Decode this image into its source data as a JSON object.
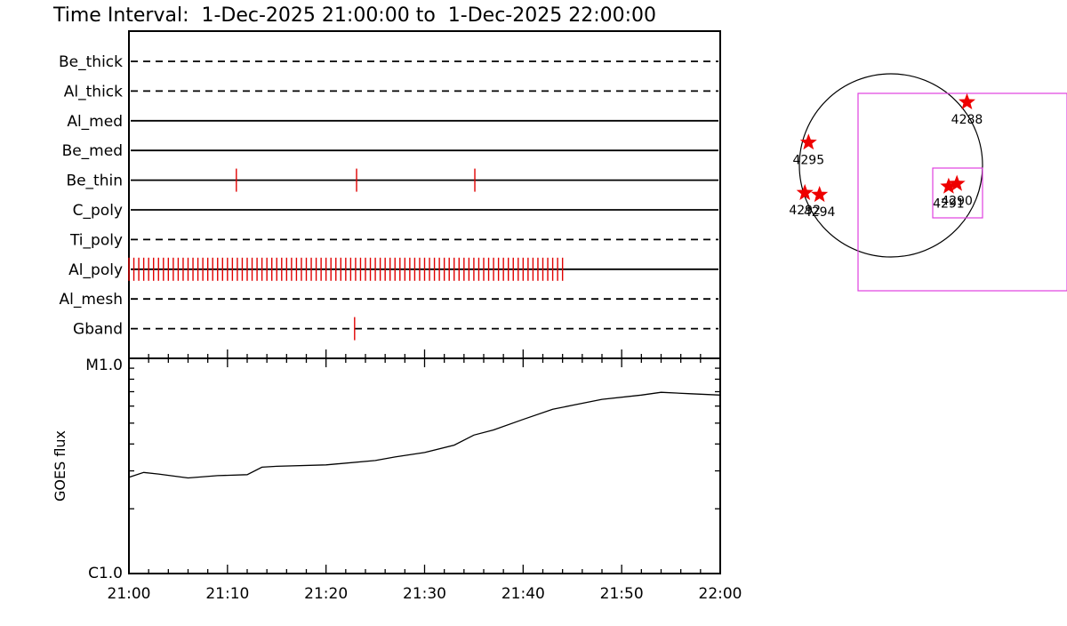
{
  "title": "Time Interval:  1-Dec-2025 21:00:00 to  1-Dec-2025 22:00:00",
  "chart_data": [
    {
      "type": "timeline",
      "name": "filter-timeline",
      "x_ticks": [
        "21:00",
        "21:10",
        "21:20",
        "21:30",
        "21:40",
        "21:50",
        "22:00"
      ],
      "xlim_minutes": [
        0,
        60
      ],
      "channels": [
        {
          "label": "Be_thick",
          "style": "dashed",
          "events": []
        },
        {
          "label": "Al_thick",
          "style": "dashed",
          "events": []
        },
        {
          "label": "Al_med",
          "style": "solid",
          "events": []
        },
        {
          "label": "Be_med",
          "style": "solid",
          "events": []
        },
        {
          "label": "Be_thin",
          "style": "solid",
          "events": [
            10.9,
            23.1,
            35.1
          ]
        },
        {
          "label": "C_poly",
          "style": "solid",
          "events": []
        },
        {
          "label": "Ti_poly",
          "style": "dashed",
          "events": []
        },
        {
          "label": "Al_poly",
          "style": "solid",
          "events": "periodic",
          "period_minutes": 0.5,
          "event_range": [
            0,
            44.4
          ]
        },
        {
          "label": "Al_mesh",
          "style": "dashed",
          "events": []
        },
        {
          "label": "Gband",
          "style": "dashed",
          "events": [
            22.9
          ]
        }
      ],
      "event_color": "#e00000"
    },
    {
      "type": "line",
      "name": "goes-flux",
      "ylabel": "GOES flux",
      "y_scale": "log",
      "y_tick_labels": [
        "M1.0",
        "C1.0"
      ],
      "ylim_wm2": [
        1e-06,
        1e-05
      ],
      "x_ticks": [
        "21:00",
        "21:10",
        "21:20",
        "21:30",
        "21:40",
        "21:50",
        "22:00"
      ],
      "series": [
        {
          "x_minutes": [
            0,
            1.5,
            3,
            6,
            9,
            12,
            13.5,
            15,
            20,
            25,
            27,
            30,
            33,
            35,
            37,
            40,
            43,
            45,
            48,
            52,
            54,
            57,
            60
          ],
          "flux_wm2": [
            2.8e-06,
            2.95e-06,
            2.9e-06,
            2.78e-06,
            2.85e-06,
            2.88e-06,
            3.12e-06,
            3.15e-06,
            3.2e-06,
            3.35e-06,
            3.48e-06,
            3.65e-06,
            3.95e-06,
            4.4e-06,
            4.65e-06,
            5.2e-06,
            5.8e-06,
            6.05e-06,
            6.45e-06,
            6.75e-06,
            6.95e-06,
            6.85e-06,
            6.75e-06
          ]
        }
      ]
    },
    {
      "type": "scatter",
      "name": "solar-disk-map",
      "active_regions": [
        {
          "label": "4288",
          "x": 0.83,
          "y": 0.69
        },
        {
          "label": "4295",
          "x": -0.9,
          "y": 0.25
        },
        {
          "label": "4292",
          "x": -0.94,
          "y": -0.3
        },
        {
          "label": "4294",
          "x": -0.78,
          "y": -0.32
        },
        {
          "label": "4291",
          "x": 0.63,
          "y": -0.23
        },
        {
          "label": "4290",
          "x": 0.72,
          "y": -0.2
        }
      ],
      "marker_color": "#ee0000",
      "box_color": "#e040e0"
    }
  ]
}
